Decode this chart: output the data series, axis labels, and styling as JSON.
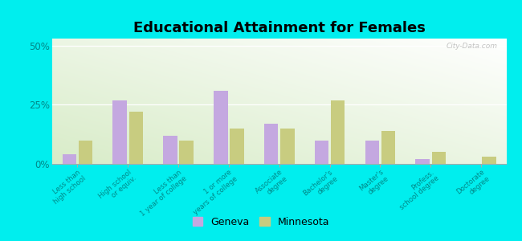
{
  "title": "Educational Attainment for Females",
  "categories": [
    "Less than\nhigh school",
    "High school\nor equiv.",
    "Less than\n1 year of college",
    "1 or more\nyears of college",
    "Associate\ndegree",
    "Bachelor's\ndegree",
    "Master's\ndegree",
    "Profess.\nschool degree",
    "Doctorate\ndegree"
  ],
  "geneva": [
    4.0,
    27.0,
    12.0,
    31.0,
    17.0,
    10.0,
    10.0,
    2.0,
    0.0
  ],
  "minnesota": [
    10.0,
    22.0,
    10.0,
    15.0,
    15.0,
    27.0,
    14.0,
    5.0,
    3.0
  ],
  "geneva_color": "#c4a8e0",
  "minnesota_color": "#c8cc80",
  "background_color": "#00eeee",
  "title_fontsize": 13,
  "ylabel_ticks": [
    0,
    25,
    50
  ],
  "ylim": [
    0,
    53
  ],
  "legend_geneva": "Geneva",
  "legend_minnesota": "Minnesota",
  "watermark": "City-Data.com",
  "tick_label_color": "#008888",
  "ytick_label_color": "#008888"
}
